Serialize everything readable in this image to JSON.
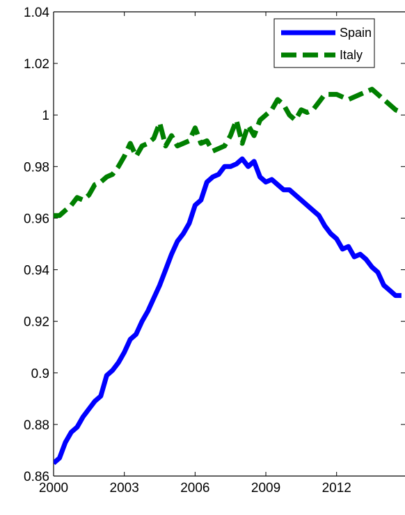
{
  "chart_data": {
    "type": "line",
    "title": "",
    "xlabel": "",
    "ylabel": "",
    "xlim": [
      2000,
      2014.9
    ],
    "ylim": [
      0.86,
      1.04
    ],
    "xticks": [
      2000,
      2003,
      2006,
      2009,
      2012
    ],
    "xtick_labels": [
      "2000",
      "2003",
      "2006",
      "2009",
      "2012"
    ],
    "yticks": [
      0.86,
      0.88,
      0.9,
      0.92,
      0.94,
      0.96,
      0.98,
      1.0,
      1.02,
      1.04
    ],
    "ytick_labels": [
      "0.86",
      "0.88",
      "0.9",
      "0.92",
      "0.94",
      "0.96",
      "0.98",
      "1",
      "1.02",
      "1.04"
    ],
    "grid": false,
    "legend_position": "top-right",
    "series": [
      {
        "name": "Spain",
        "color": "#0000ff",
        "line_style": "solid",
        "x": [
          2000.0,
          2000.25,
          2000.5,
          2000.75,
          2001.0,
          2001.25,
          2001.5,
          2001.75,
          2002.0,
          2002.25,
          2002.5,
          2002.75,
          2003.0,
          2003.25,
          2003.5,
          2003.75,
          2004.0,
          2004.25,
          2004.5,
          2004.75,
          2005.0,
          2005.25,
          2005.5,
          2005.75,
          2006.0,
          2006.25,
          2006.5,
          2006.75,
          2007.0,
          2007.25,
          2007.5,
          2007.75,
          2008.0,
          2008.25,
          2008.5,
          2008.75,
          2009.0,
          2009.25,
          2009.5,
          2009.75,
          2010.0,
          2010.25,
          2010.5,
          2010.75,
          2011.0,
          2011.25,
          2011.5,
          2011.75,
          2012.0,
          2012.25,
          2012.5,
          2012.75,
          2013.0,
          2013.25,
          2013.5,
          2013.75,
          2014.0,
          2014.25,
          2014.5,
          2014.75
        ],
        "values": [
          0.865,
          0.867,
          0.873,
          0.877,
          0.879,
          0.883,
          0.886,
          0.889,
          0.891,
          0.899,
          0.901,
          0.904,
          0.908,
          0.913,
          0.915,
          0.92,
          0.924,
          0.929,
          0.934,
          0.94,
          0.946,
          0.951,
          0.954,
          0.958,
          0.965,
          0.967,
          0.974,
          0.976,
          0.977,
          0.98,
          0.98,
          0.981,
          0.983,
          0.98,
          0.982,
          0.976,
          0.974,
          0.975,
          0.973,
          0.971,
          0.971,
          0.969,
          0.967,
          0.965,
          0.963,
          0.961,
          0.957,
          0.954,
          0.952,
          0.948,
          0.949,
          0.945,
          0.946,
          0.944,
          0.941,
          0.939,
          0.934,
          0.932,
          0.93,
          0.93
        ]
      },
      {
        "name": "Italy",
        "color": "#007f00",
        "line_style": "dashed",
        "x": [
          2000.0,
          2000.25,
          2000.5,
          2000.75,
          2001.0,
          2001.25,
          2001.5,
          2001.75,
          2002.0,
          2002.25,
          2002.5,
          2002.75,
          2003.0,
          2003.25,
          2003.5,
          2003.75,
          2004.0,
          2004.25,
          2004.5,
          2004.75,
          2005.0,
          2005.25,
          2005.5,
          2005.75,
          2006.0,
          2006.25,
          2006.5,
          2006.75,
          2007.0,
          2007.25,
          2007.5,
          2007.75,
          2008.0,
          2008.25,
          2008.5,
          2008.75,
          2009.0,
          2009.25,
          2009.5,
          2009.75,
          2010.0,
          2010.25,
          2010.5,
          2010.75,
          2011.0,
          2011.25,
          2011.5,
          2011.75,
          2012.0,
          2012.25,
          2012.5,
          2012.75,
          2013.0,
          2013.25,
          2013.5,
          2013.75,
          2014.0,
          2014.25,
          2014.5,
          2014.75
        ],
        "values": [
          0.961,
          0.961,
          0.963,
          0.965,
          0.968,
          0.967,
          0.969,
          0.973,
          0.974,
          0.976,
          0.977,
          0.98,
          0.984,
          0.989,
          0.984,
          0.988,
          0.989,
          0.991,
          0.997,
          0.988,
          0.992,
          0.988,
          0.989,
          0.99,
          0.995,
          0.989,
          0.99,
          0.986,
          0.987,
          0.988,
          0.992,
          0.998,
          0.989,
          0.996,
          0.992,
          0.998,
          1.0,
          1.002,
          1.006,
          1.004,
          1.0,
          0.998,
          1.002,
          1.001,
          1.002,
          1.005,
          1.008,
          1.008,
          1.008,
          1.007,
          1.006,
          1.007,
          1.008,
          1.009,
          1.01,
          1.008,
          1.006,
          1.004,
          1.002,
          1.001
        ]
      }
    ]
  }
}
